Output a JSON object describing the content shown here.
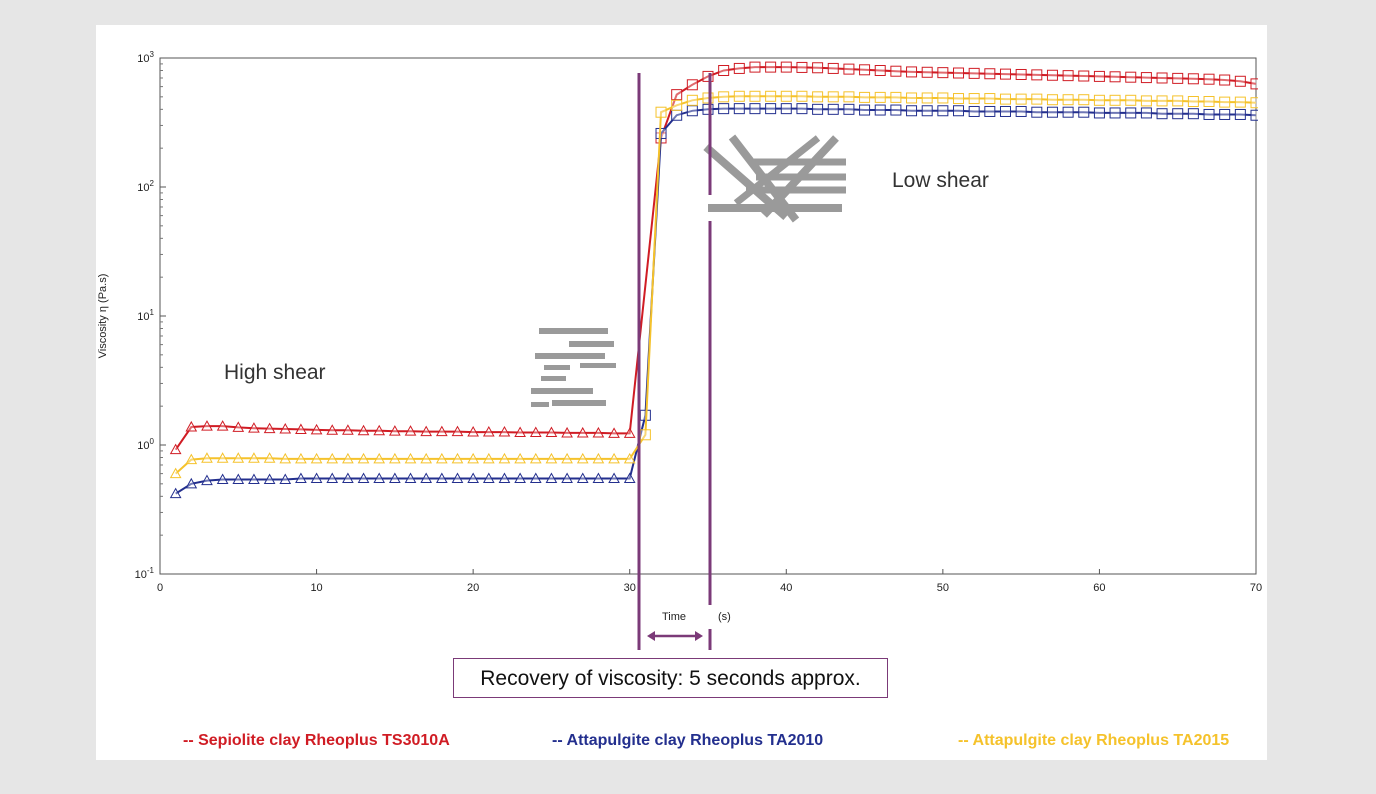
{
  "chart_data": {
    "type": "line",
    "title": "",
    "xlabel": "Time",
    "xlabel_unit": "(s)",
    "ylabel": "Viscosity η (Pa.s)",
    "xlim": [
      0,
      70
    ],
    "ylim": [
      0.1,
      1000
    ],
    "yscale": "log",
    "x_ticks": [
      "0",
      "10",
      "20",
      "30",
      "40",
      "50",
      "60",
      "70"
    ],
    "y_ticks": [
      {
        "base": "10",
        "exp": "-1"
      },
      {
        "base": "10",
        "exp": "0"
      },
      {
        "base": "10",
        "exp": "1"
      },
      {
        "base": "10",
        "exp": "2"
      },
      {
        "base": "10",
        "exp": "3"
      }
    ],
    "grid": false,
    "legend_position": "bottom",
    "series": [
      {
        "name": "-- Sepiolite clay Rheoplus TS3010A",
        "color": "#d01c24",
        "high_shear": {
          "x": [
            1,
            2,
            3,
            4,
            5,
            6,
            7,
            8,
            9,
            10,
            11,
            12,
            13,
            14,
            15,
            16,
            17,
            18,
            19,
            20,
            21,
            22,
            23,
            24,
            25,
            26,
            27,
            28,
            29,
            30
          ],
          "y": [
            0.92,
            1.38,
            1.4,
            1.4,
            1.37,
            1.35,
            1.34,
            1.33,
            1.32,
            1.31,
            1.3,
            1.3,
            1.29,
            1.29,
            1.28,
            1.28,
            1.27,
            1.27,
            1.27,
            1.26,
            1.26,
            1.26,
            1.25,
            1.25,
            1.25,
            1.24,
            1.24,
            1.24,
            1.23,
            1.23
          ]
        },
        "low_shear": {
          "x": [
            32,
            33,
            34,
            35,
            36,
            37,
            38,
            39,
            40,
            41,
            42,
            43,
            44,
            45,
            46,
            47,
            48,
            49,
            50,
            51,
            52,
            53,
            54,
            55,
            56,
            57,
            58,
            59,
            60,
            61,
            62,
            63,
            64,
            65,
            66,
            67,
            68,
            69,
            70
          ],
          "y": [
            240,
            520,
            620,
            720,
            800,
            830,
            850,
            850,
            850,
            845,
            840,
            830,
            820,
            810,
            800,
            790,
            780,
            775,
            770,
            765,
            760,
            755,
            750,
            745,
            740,
            735,
            730,
            725,
            720,
            715,
            710,
            705,
            700,
            695,
            690,
            685,
            675,
            660,
            630
          ]
        }
      },
      {
        "name": "-- Attapulgite clay Rheoplus TA2010",
        "color": "#232f8e",
        "high_shear": {
          "x": [
            1,
            2,
            3,
            4,
            5,
            6,
            7,
            8,
            9,
            10,
            11,
            12,
            13,
            14,
            15,
            16,
            17,
            18,
            19,
            20,
            21,
            22,
            23,
            24,
            25,
            26,
            27,
            28,
            29,
            30
          ],
          "y": [
            0.42,
            0.5,
            0.53,
            0.54,
            0.54,
            0.54,
            0.54,
            0.54,
            0.55,
            0.55,
            0.55,
            0.55,
            0.55,
            0.55,
            0.55,
            0.55,
            0.55,
            0.55,
            0.55,
            0.55,
            0.55,
            0.55,
            0.55,
            0.55,
            0.55,
            0.55,
            0.55,
            0.55,
            0.55,
            0.55
          ]
        },
        "low_shear": {
          "x": [
            31,
            32,
            33,
            34,
            35,
            36,
            37,
            38,
            39,
            40,
            41,
            42,
            43,
            44,
            45,
            46,
            47,
            48,
            49,
            50,
            51,
            52,
            53,
            54,
            55,
            56,
            57,
            58,
            59,
            60,
            61,
            62,
            63,
            64,
            65,
            66,
            67,
            68,
            69,
            70
          ],
          "y": [
            1.7,
            260,
            360,
            390,
            400,
            405,
            405,
            405,
            405,
            405,
            405,
            400,
            400,
            400,
            395,
            395,
            395,
            390,
            390,
            390,
            390,
            385,
            385,
            385,
            385,
            380,
            380,
            380,
            380,
            375,
            375,
            375,
            375,
            370,
            370,
            370,
            365,
            365,
            365,
            360
          ]
        }
      },
      {
        "name": "-- Attapulgite clay Rheoplus TA2015",
        "color": "#f5c22b",
        "high_shear": {
          "x": [
            1,
            2,
            3,
            4,
            5,
            6,
            7,
            8,
            9,
            10,
            11,
            12,
            13,
            14,
            15,
            16,
            17,
            18,
            19,
            20,
            21,
            22,
            23,
            24,
            25,
            26,
            27,
            28,
            29,
            30
          ],
          "y": [
            0.6,
            0.77,
            0.79,
            0.79,
            0.79,
            0.79,
            0.79,
            0.78,
            0.78,
            0.78,
            0.78,
            0.78,
            0.78,
            0.78,
            0.78,
            0.78,
            0.78,
            0.78,
            0.78,
            0.78,
            0.78,
            0.78,
            0.78,
            0.78,
            0.78,
            0.78,
            0.78,
            0.78,
            0.78,
            0.78
          ]
        },
        "low_shear": {
          "x": [
            31,
            32,
            33,
            34,
            35,
            36,
            37,
            38,
            39,
            40,
            41,
            42,
            43,
            44,
            45,
            46,
            47,
            48,
            49,
            50,
            51,
            52,
            53,
            54,
            55,
            56,
            57,
            58,
            59,
            60,
            61,
            62,
            63,
            64,
            65,
            66,
            67,
            68,
            69,
            70
          ],
          "y": [
            1.2,
            380,
            430,
            470,
            490,
            500,
            505,
            505,
            505,
            505,
            505,
            500,
            500,
            500,
            495,
            495,
            495,
            490,
            490,
            490,
            485,
            485,
            485,
            480,
            480,
            480,
            475,
            475,
            475,
            470,
            470,
            470,
            465,
            465,
            465,
            460,
            460,
            455,
            455,
            450
          ]
        }
      }
    ],
    "annotations": {
      "high_shear": "High shear",
      "low_shear": "Low shear",
      "recovery": "Recovery of viscosity: 5 seconds approx."
    },
    "markers": {
      "vertical_lines_x": [
        30.5,
        35
      ],
      "marker_line_color": "#7b3a78"
    }
  }
}
